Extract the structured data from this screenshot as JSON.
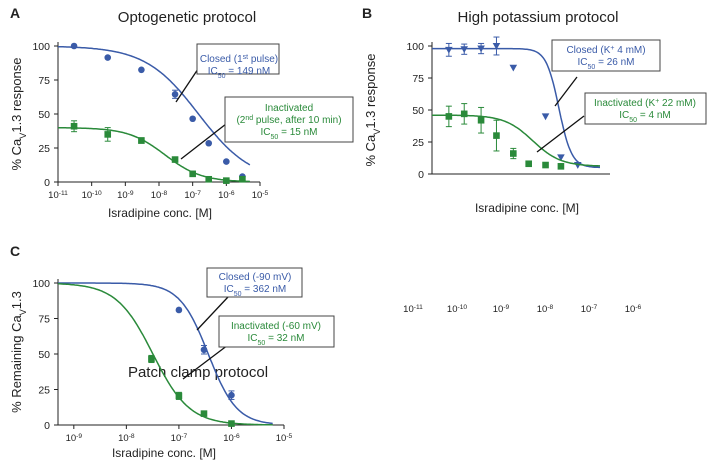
{
  "figure": {
    "colors": {
      "closed": "#3a5ba8",
      "inactivated": "#2a8a3a",
      "axis": "#222222"
    },
    "stray_x_ticks": [
      "10-11",
      "10-10",
      "10-9",
      "10-8",
      "10-7",
      "10-6"
    ]
  },
  "chart_data": [
    {
      "panel": "A",
      "type": "scatter",
      "title": "Optogenetic protocol",
      "xlabel": "Isradipine conc. [M]",
      "ylabel": "% CaV1.3 response",
      "xscale": "log",
      "xlim": [
        1e-11,
        1e-05
      ],
      "ylim": [
        0,
        100
      ],
      "x_ticks": [
        "10-11",
        "10-10",
        "10-9",
        "10-8",
        "10-7",
        "10-6",
        "10-5"
      ],
      "y_ticks": [
        0,
        25,
        50,
        75,
        100
      ],
      "series": [
        {
          "name": "Closed (1st pulse)",
          "ic50_text": "IC50 = 149 nM",
          "marker": "circle",
          "color": "#3a5ba8",
          "fit": {
            "top": 100,
            "bottom": 0,
            "ic50": 1.49e-07,
            "hill": 0.55
          },
          "points": [
            {
              "x": 3e-11,
              "y": 100,
              "err": 0
            },
            {
              "x": 3e-10,
              "y": 91.5,
              "err": 0
            },
            {
              "x": 3e-09,
              "y": 82.5,
              "err": 0
            },
            {
              "x": 3e-08,
              "y": 64.5,
              "err": 3
            },
            {
              "x": 1e-07,
              "y": 46.5,
              "err": 0
            },
            {
              "x": 3e-07,
              "y": 28.5,
              "err": 0
            },
            {
              "x": 1e-06,
              "y": 15,
              "err": 0
            },
            {
              "x": 3e-06,
              "y": 4,
              "err": 0
            }
          ]
        },
        {
          "name": "Inactivated (2nd pulse, after 10 min)",
          "ic50_text": "IC50 = 15 nM",
          "marker": "square",
          "color": "#2a8a3a",
          "fit": {
            "top": 40,
            "bottom": 0,
            "ic50": 1.5e-08,
            "hill": 0.8
          },
          "points": [
            {
              "x": 3e-11,
              "y": 41,
              "err": 4
            },
            {
              "x": 3e-10,
              "y": 35,
              "err": 5
            },
            {
              "x": 3e-09,
              "y": 30.5,
              "err": 2
            },
            {
              "x": 3e-08,
              "y": 16.5,
              "err": 1.5
            },
            {
              "x": 1e-07,
              "y": 6,
              "err": 0
            },
            {
              "x": 3e-07,
              "y": 2,
              "err": 0
            },
            {
              "x": 1e-06,
              "y": 1,
              "err": 0
            },
            {
              "x": 3e-06,
              "y": 2,
              "err": 0
            }
          ]
        }
      ]
    },
    {
      "panel": "B",
      "type": "scatter",
      "title": "High potassium protocol",
      "xlabel": "Isradipine conc. [M]",
      "ylabel": "% CaV1.3 response",
      "xscale": "log",
      "xlim": [
        3e-12,
        1e-06
      ],
      "ylim": [
        0,
        100
      ],
      "x_ticks": [],
      "y_ticks": [
        0,
        25,
        50,
        75,
        100
      ],
      "series": [
        {
          "name": "Closed (K+ 4 mM)",
          "ic50_text": "IC50 = 26 nM",
          "marker": "triangle-down",
          "color": "#3a5ba8",
          "fit": {
            "top": 98,
            "bottom": 5,
            "ic50": 2.6e-08,
            "hill": 2.2
          },
          "points": [
            {
              "x": 1e-11,
              "y": 97,
              "err": 5
            },
            {
              "x": 3e-11,
              "y": 97.5,
              "err": 4
            },
            {
              "x": 1e-10,
              "y": 98,
              "err": 4
            },
            {
              "x": 3e-10,
              "y": 100,
              "err": 7
            },
            {
              "x": 1e-09,
              "y": 83,
              "err": 0
            },
            {
              "x": 1e-08,
              "y": 45,
              "err": 0
            },
            {
              "x": 3e-08,
              "y": 13,
              "err": 0
            },
            {
              "x": 1e-07,
              "y": 7,
              "err": 0
            }
          ]
        },
        {
          "name": "Inactivated (K+ 22 mM)",
          "ic50_text": "IC50 = 4 nM",
          "marker": "square",
          "color": "#2a8a3a",
          "fit": {
            "top": 46,
            "bottom": 6,
            "ic50": 4e-09,
            "hill": 1
          },
          "points": [
            {
              "x": 1e-11,
              "y": 45,
              "err": 8
            },
            {
              "x": 3e-11,
              "y": 47,
              "err": 8
            },
            {
              "x": 1e-10,
              "y": 42,
              "err": 10
            },
            {
              "x": 3e-10,
              "y": 30,
              "err": 12
            },
            {
              "x": 1e-09,
              "y": 16,
              "err": 4
            },
            {
              "x": 3e-09,
              "y": 8,
              "err": 0
            },
            {
              "x": 1e-08,
              "y": 7,
              "err": 0
            },
            {
              "x": 3e-08,
              "y": 6,
              "err": 0
            }
          ]
        }
      ]
    },
    {
      "panel": "C",
      "type": "scatter",
      "title": "Patch clamp protocol",
      "xlabel": "Isradipine conc. [M]",
      "ylabel": "% Remaining CaV1.3",
      "xscale": "log",
      "xlim": [
        5e-10,
        1e-05
      ],
      "ylim": [
        0,
        100
      ],
      "x_ticks": [
        "10-9",
        "10-8",
        "10-7",
        "10-6",
        "10-5"
      ],
      "y_ticks": [
        0,
        25,
        50,
        75,
        100
      ],
      "series": [
        {
          "name": "Closed (-90 mV)",
          "ic50_text": "IC50 = 362 nM",
          "marker": "circle",
          "color": "#3a5ba8",
          "fit": {
            "top": 100,
            "bottom": 0,
            "ic50": 3.62e-07,
            "hill": 1.6
          },
          "points": [
            {
              "x": 1e-07,
              "y": 81,
              "err": 0
            },
            {
              "x": 3e-07,
              "y": 53,
              "err": 3
            },
            {
              "x": 1e-06,
              "y": 21,
              "err": 3
            }
          ]
        },
        {
          "name": "Inactivated (-60 mV)",
          "ic50_text": "IC50 = 32 nM",
          "marker": "square",
          "color": "#2a8a3a",
          "fit": {
            "top": 100,
            "bottom": 0,
            "ic50": 3.2e-08,
            "hill": 1.25
          },
          "points": [
            {
              "x": 3e-08,
              "y": 46.5,
              "err": 2.5
            },
            {
              "x": 1e-07,
              "y": 20.5,
              "err": 2.5
            },
            {
              "x": 3e-07,
              "y": 8,
              "err": 0
            },
            {
              "x": 1e-06,
              "y": 1,
              "err": 0
            }
          ]
        }
      ]
    }
  ]
}
